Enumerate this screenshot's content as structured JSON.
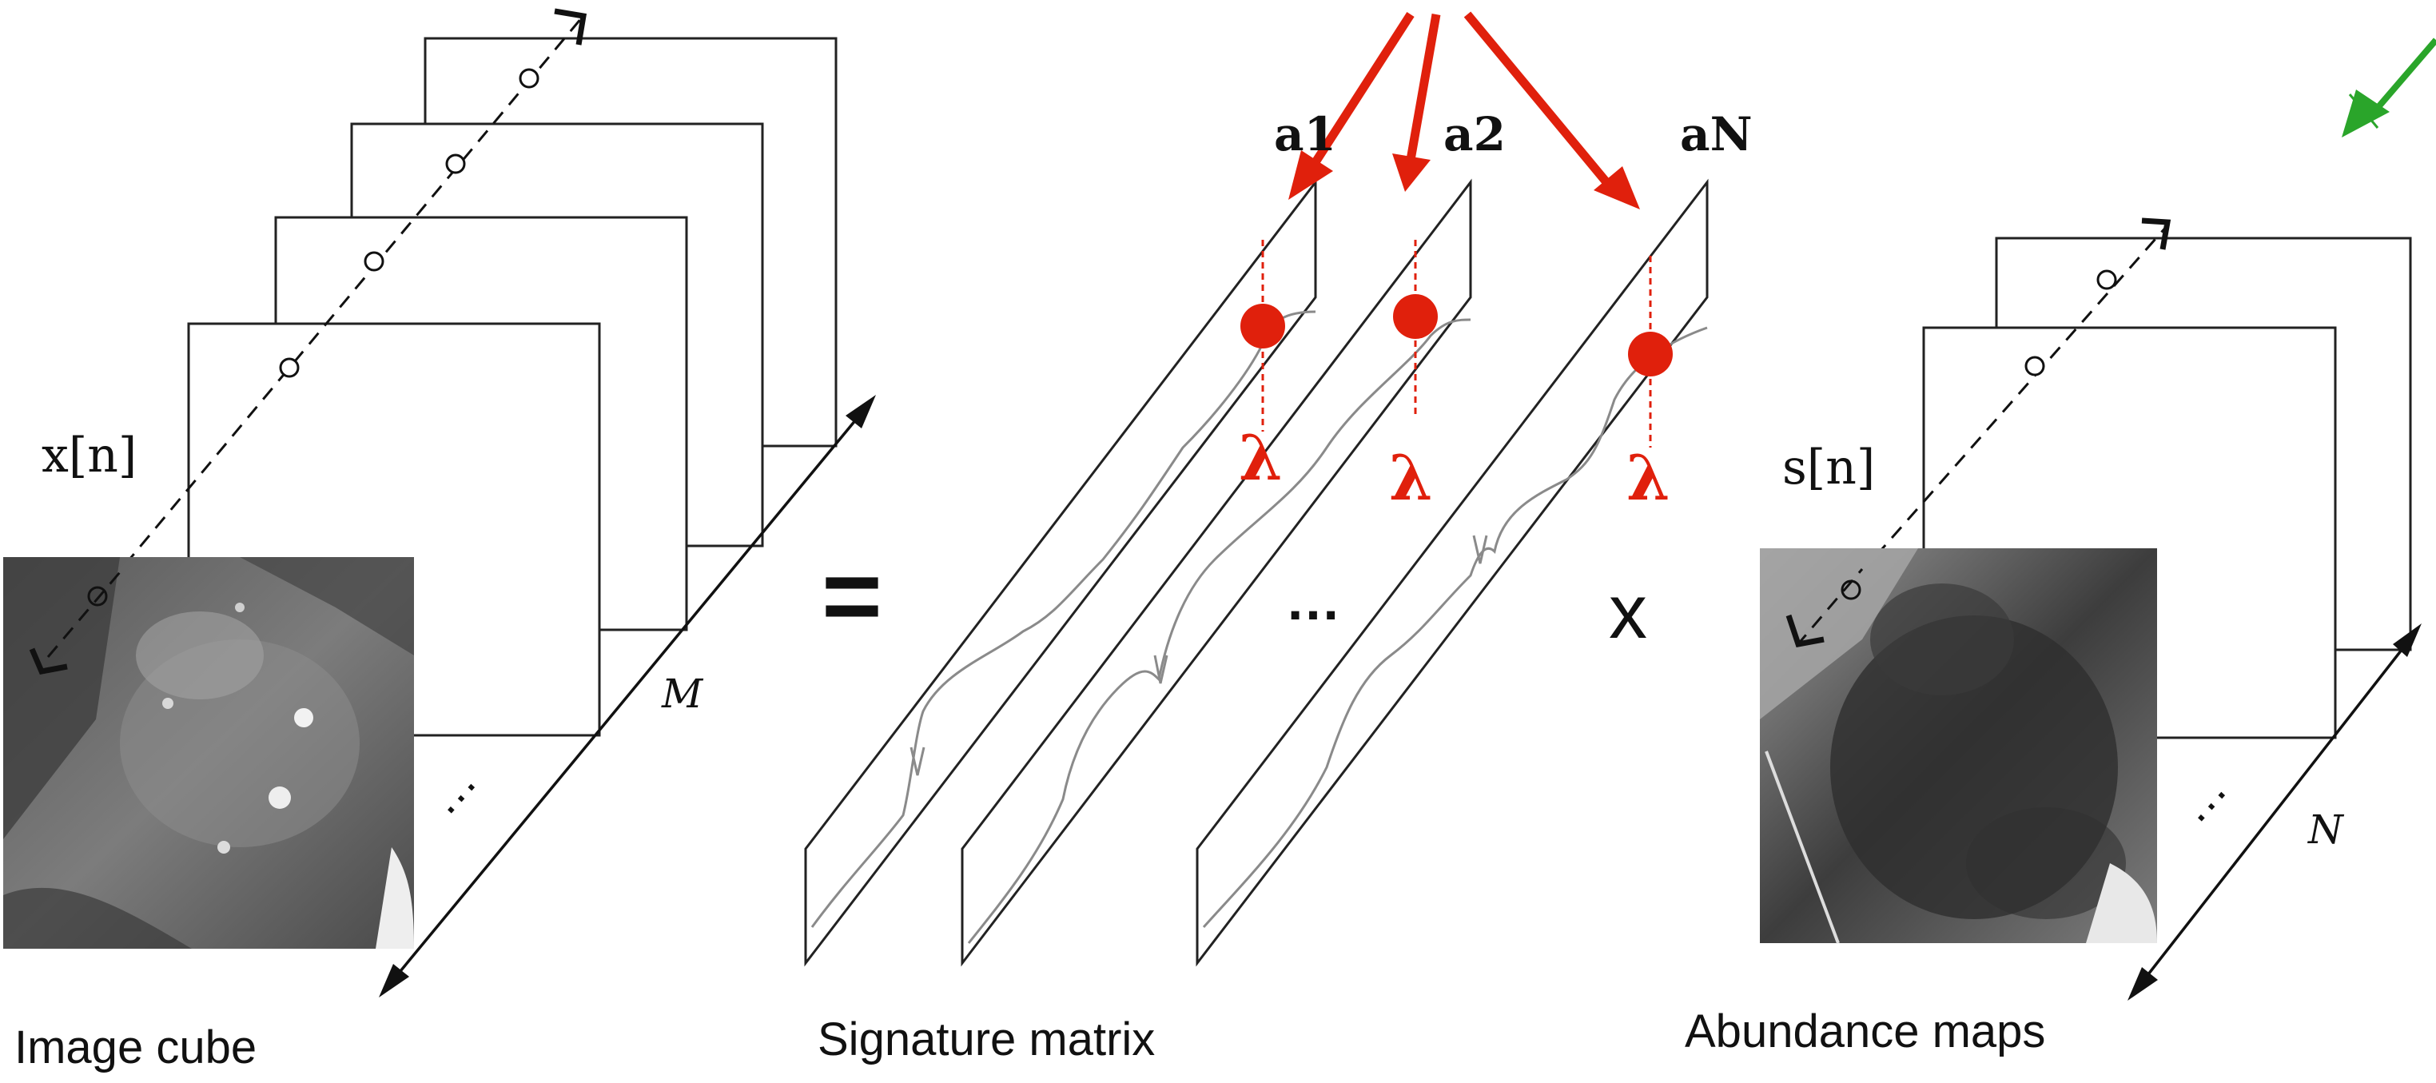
{
  "labels": {
    "image_cube": "Image cube",
    "signature_matrix": "Signature matrix",
    "abundance_maps": "Abundance maps",
    "x_n": "x[n]",
    "s_n": "s[n]",
    "M": "M",
    "N": "N",
    "a1": "a1",
    "a2": "a2",
    "aN": "aN",
    "equals": "=",
    "times": "x",
    "dots": "…",
    "lambda": "λ"
  },
  "colors": {
    "line": "#111111",
    "accent_red": "#e0200c",
    "accent_green": "#2aa52a",
    "spectrum": "#8a8a8a"
  }
}
